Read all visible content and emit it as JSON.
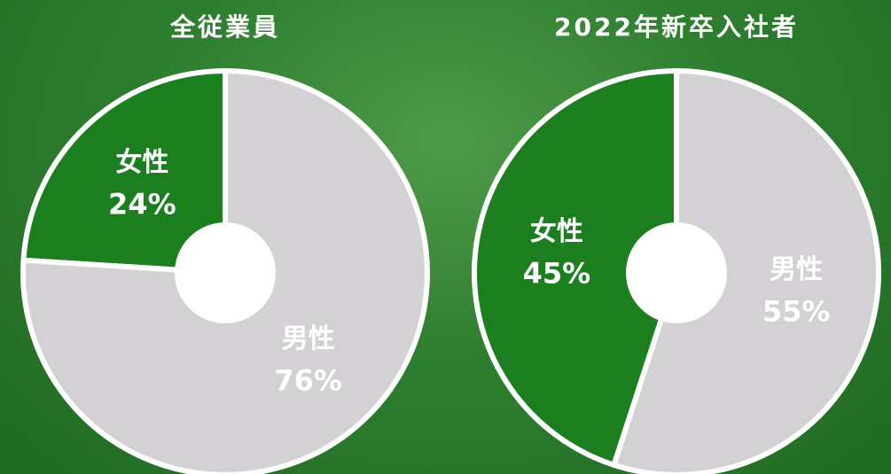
{
  "chart_data": [
    {
      "type": "pie",
      "title": "全従業員",
      "categories": [
        "女性",
        "男性"
      ],
      "values": [
        24,
        76
      ],
      "value_labels": [
        "24%",
        "76%"
      ],
      "colors": [
        "#1b7f20",
        "#d3d1d3"
      ]
    },
    {
      "type": "pie",
      "title": "2022年新卒入社者",
      "categories": [
        "女性",
        "男性"
      ],
      "values": [
        45,
        55
      ],
      "value_labels": [
        "45%",
        "55%"
      ],
      "colors": [
        "#1b7f20",
        "#d3d1d3"
      ]
    }
  ]
}
